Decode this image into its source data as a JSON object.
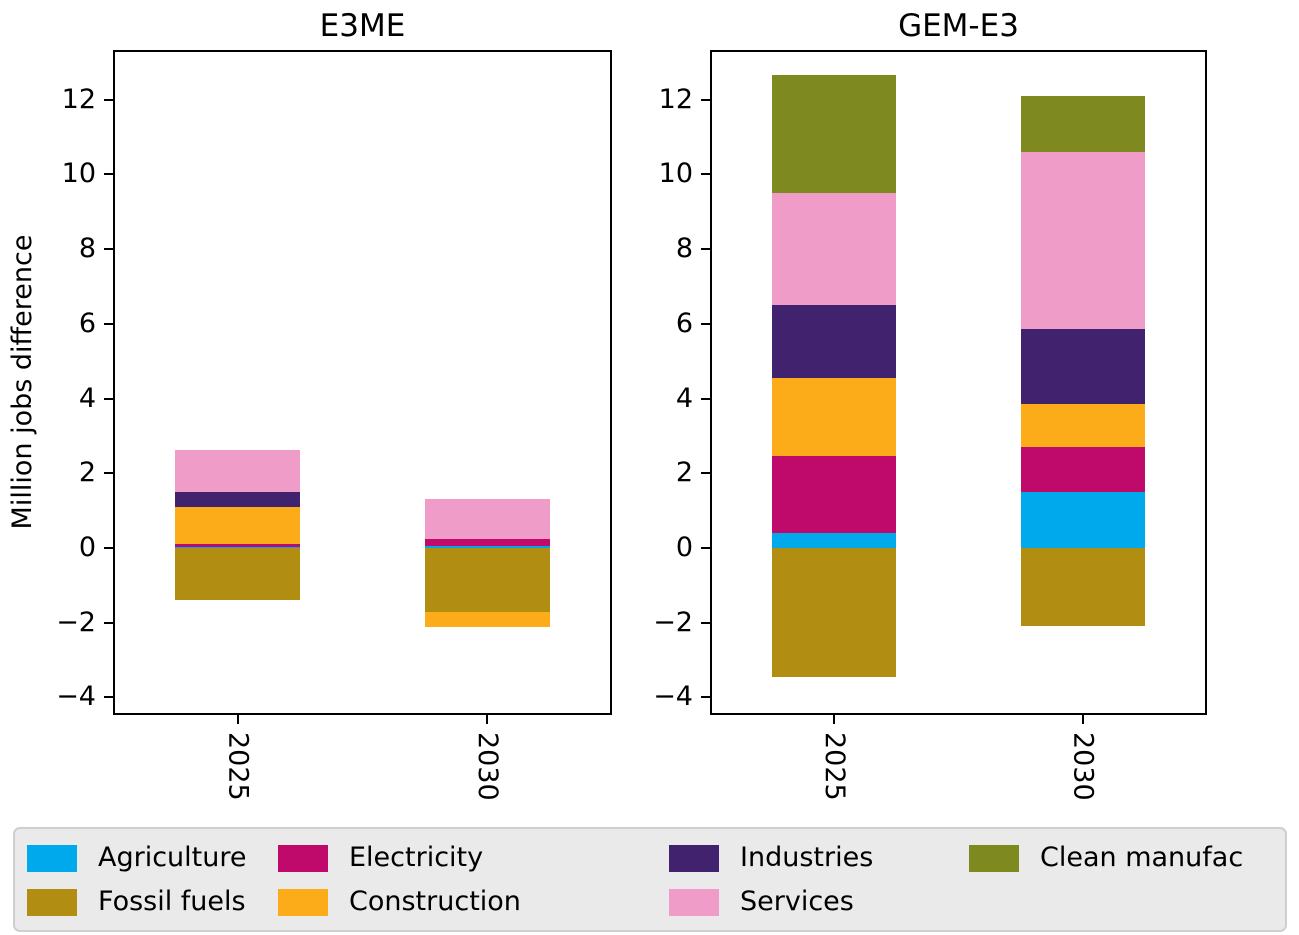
{
  "figure": {
    "ylabel": "Million jobs difference"
  },
  "chart_data": [
    {
      "type": "bar",
      "variant": "stacked",
      "title": "E3ME",
      "categories": [
        "2025",
        "2030"
      ],
      "series": [
        {
          "name": "Agriculture",
          "color": "#00A9EC",
          "values": [
            0.03,
            0.05
          ]
        },
        {
          "name": "Fossil fuels",
          "color": "#B18D11",
          "values": [
            -1.4,
            -1.7
          ]
        },
        {
          "name": "Electricity",
          "color": "#BF0A6B",
          "values": [
            0.08,
            0.2
          ]
        },
        {
          "name": "Construction",
          "color": "#FBAC18",
          "values": [
            1.0,
            -0.42
          ]
        },
        {
          "name": "Industries",
          "color": "#41226E",
          "values": [
            0.4,
            0
          ]
        },
        {
          "name": "Services",
          "color": "#F09CC8",
          "values": [
            1.1,
            1.05
          ]
        },
        {
          "name": "Clean manufac",
          "color": "#7E8A20",
          "values": [
            0,
            0
          ]
        }
      ],
      "ylabel": "Million jobs difference",
      "ylim": [
        -4.47,
        13.33
      ],
      "yticks": [
        -4,
        -2,
        0,
        2,
        4,
        6,
        8,
        10,
        12
      ],
      "grid": false,
      "legend_position": "bottom"
    },
    {
      "type": "bar",
      "variant": "stacked",
      "title": "GEM-E3",
      "categories": [
        "2025",
        "2030"
      ],
      "series": [
        {
          "name": "Agriculture",
          "color": "#00A9EC",
          "values": [
            0.4,
            1.5
          ]
        },
        {
          "name": "Fossil fuels",
          "color": "#B18D11",
          "values": [
            -3.45,
            -2.1
          ]
        },
        {
          "name": "Electricity",
          "color": "#BF0A6B",
          "values": [
            2.05,
            1.2
          ]
        },
        {
          "name": "Construction",
          "color": "#FBAC18",
          "values": [
            2.1,
            1.15
          ]
        },
        {
          "name": "Industries",
          "color": "#41226E",
          "values": [
            1.95,
            2.0
          ]
        },
        {
          "name": "Services",
          "color": "#F09CC8",
          "values": [
            3.0,
            4.75
          ]
        },
        {
          "name": "Clean manufac",
          "color": "#7E8A20",
          "values": [
            3.15,
            1.5
          ]
        }
      ],
      "ylabel": "Million jobs difference",
      "ylim": [
        -4.47,
        13.33
      ],
      "yticks": [
        -4,
        -2,
        0,
        2,
        4,
        6,
        8,
        10,
        12
      ],
      "grid": false,
      "legend_position": "bottom"
    }
  ],
  "legend": {
    "items": [
      {
        "label": "Agriculture",
        "color": "#00A9EC"
      },
      {
        "label": "Fossil fuels",
        "color": "#B18D11"
      },
      {
        "label": "Electricity",
        "color": "#BF0A6B"
      },
      {
        "label": "Construction",
        "color": "#FBAC18"
      },
      {
        "label": "Industries",
        "color": "#41226E"
      },
      {
        "label": "Services",
        "color": "#F09CC8"
      },
      {
        "label": "Clean manufac",
        "color": "#7E8A20"
      }
    ]
  }
}
